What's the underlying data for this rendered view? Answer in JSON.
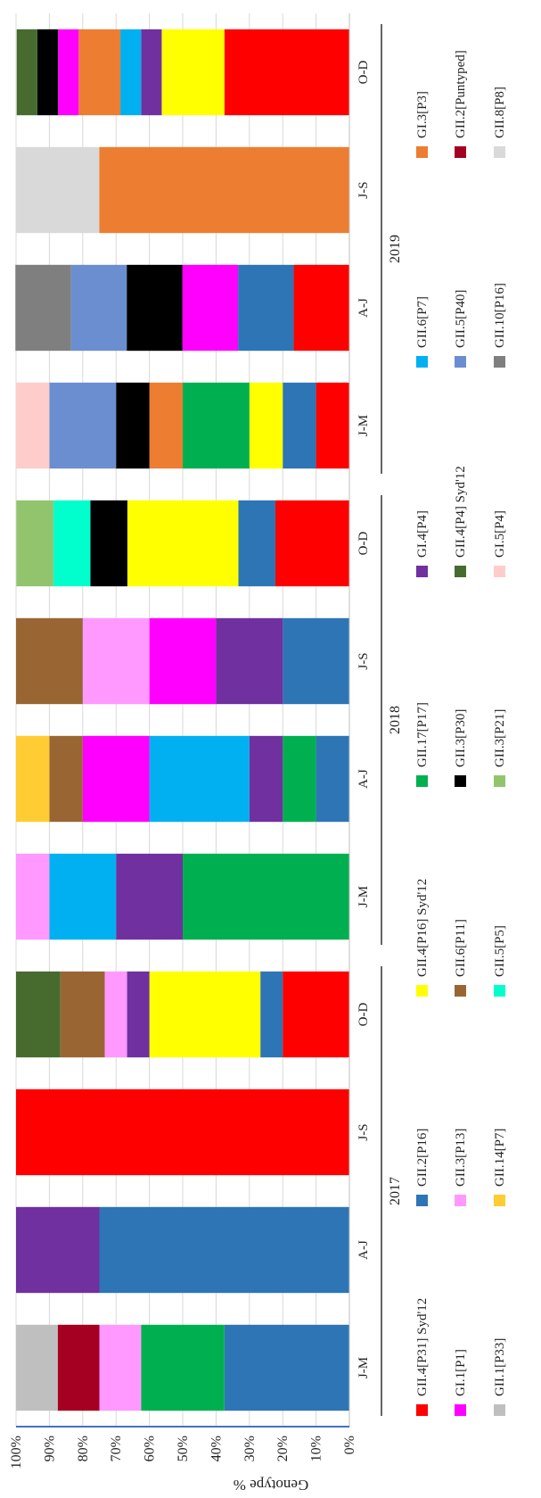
{
  "chart_data": {
    "type": "bar",
    "stacked": true,
    "normalized_percent": true,
    "ylabel": "Genotype %",
    "ylim": [
      0,
      100
    ],
    "yticks": [
      "0%",
      "10%",
      "20%",
      "30%",
      "40%",
      "50%",
      "60%",
      "70%",
      "80%",
      "90%",
      "100%"
    ],
    "grid": true,
    "legend_position": "bottom",
    "groups": [
      {
        "label": "2017",
        "categories": [
          "J-M",
          "A-J",
          "J-S",
          "O-D"
        ]
      },
      {
        "label": "2018",
        "categories": [
          "J-M",
          "A-J",
          "J-S",
          "O-D"
        ]
      },
      {
        "label": "2019",
        "categories": [
          "J-M",
          "A-J",
          "J-S",
          "O-D"
        ]
      }
    ],
    "series": [
      {
        "name": "GII.4[P31] Syd'12",
        "color": "#FF0000",
        "values": [
          0,
          0,
          100,
          20,
          0,
          0,
          0,
          22.2,
          10,
          16.7,
          0,
          37.5
        ]
      },
      {
        "name": "GII.2[P16]",
        "color": "#2E75B6",
        "values": [
          37.5,
          75,
          0,
          6.7,
          0,
          10,
          20,
          11.1,
          10,
          16.7,
          0,
          0
        ]
      },
      {
        "name": "GII.4[P16] Syd'12",
        "color": "#FFFF00",
        "values": [
          0,
          0,
          0,
          33.3,
          0,
          0,
          0,
          33.3,
          10,
          0,
          0,
          18.8
        ]
      },
      {
        "name": "GII.17[P17]",
        "color": "#00B050",
        "values": [
          25,
          0,
          0,
          0,
          50,
          10,
          0,
          0,
          20,
          0,
          0,
          0
        ]
      },
      {
        "name": "GI.4[P4]",
        "color": "#7030A0",
        "values": [
          0,
          25,
          0,
          6.7,
          20,
          10,
          20,
          0,
          0,
          0,
          0,
          6.2
        ]
      },
      {
        "name": "GII.6[P7]",
        "color": "#00B0F0",
        "values": [
          0,
          0,
          0,
          0,
          20,
          30,
          0,
          0,
          0,
          0,
          0,
          6.2
        ]
      },
      {
        "name": "GI.3[P3]",
        "color": "#ED7D31",
        "values": [
          0,
          0,
          0,
          0,
          0,
          0,
          0,
          0,
          10,
          0,
          75,
          12.5
        ]
      },
      {
        "name": "GI.1[P1]",
        "color": "#FF00FF",
        "values": [
          0,
          0,
          0,
          0,
          0,
          20,
          20,
          0,
          0,
          16.7,
          0,
          6.2
        ]
      },
      {
        "name": "GII.6[P11]",
        "color": "#996633",
        "values": [
          0,
          0,
          0,
          13.3,
          0,
          10,
          20,
          0,
          0,
          0,
          0,
          0
        ]
      },
      {
        "name": "GII.3[P30]",
        "color": "#000000",
        "values": [
          0,
          0,
          0,
          0,
          0,
          0,
          0,
          11.1,
          10,
          16.7,
          0,
          6.2
        ]
      },
      {
        "name": "GII.5[P40]",
        "color": "#6B8ED0",
        "values": [
          0,
          0,
          0,
          0,
          0,
          0,
          0,
          0,
          20,
          16.7,
          0,
          0
        ]
      },
      {
        "name": "GII.2[Puntyped]",
        "color": "#A50021",
        "values": [
          12.5,
          0,
          0,
          0,
          0,
          0,
          0,
          0,
          0,
          0,
          0,
          0
        ]
      },
      {
        "name": "GII.3[P13]",
        "color": "#FF99FF",
        "values": [
          12.5,
          0,
          0,
          6.7,
          10,
          0,
          20,
          0,
          0,
          0,
          0,
          0
        ]
      },
      {
        "name": "GII.5[P5]",
        "color": "#00FFCC",
        "values": [
          0,
          0,
          0,
          0,
          0,
          0,
          0,
          11.1,
          0,
          0,
          0,
          0
        ]
      },
      {
        "name": "GII.4[P4] Syd'12",
        "color": "#476B2F",
        "values": [
          0,
          0,
          0,
          13.3,
          0,
          0,
          0,
          0,
          0,
          0,
          0,
          6.2
        ]
      },
      {
        "name": "GII.10[P16]",
        "color": "#7F7F7F",
        "values": [
          0,
          0,
          0,
          0,
          0,
          0,
          0,
          0,
          0,
          16.7,
          0,
          0
        ]
      },
      {
        "name": "GII.1[P33]",
        "color": "#BFBFBF",
        "values": [
          12.5,
          0,
          0,
          0,
          0,
          0,
          0,
          0,
          0,
          0,
          0,
          0
        ]
      },
      {
        "name": "GII.14[P7]",
        "color": "#FFCC33",
        "values": [
          0,
          0,
          0,
          0,
          0,
          10,
          0,
          0,
          0,
          0,
          0,
          0
        ]
      },
      {
        "name": "GII.3[P21]",
        "color": "#92C46D",
        "values": [
          0,
          0,
          0,
          0,
          0,
          0,
          0,
          11.1,
          0,
          0,
          0,
          0
        ]
      },
      {
        "name": "GI.5[P4]",
        "color": "#FFCCCC",
        "values": [
          0,
          0,
          0,
          0,
          0,
          0,
          0,
          0,
          10,
          0,
          0,
          0
        ]
      },
      {
        "name": "GII.8[P8]",
        "color": "#D9D9D9",
        "values": [
          0,
          0,
          0,
          0,
          0,
          0,
          0,
          0,
          0,
          0,
          25,
          0
        ]
      }
    ],
    "bar_stack_order": [
      [
        "GII.2[P16]",
        "GII.17[P17]",
        "GII.3[P13]",
        "GII.2[Puntyped]",
        "GII.1[P33]"
      ],
      [
        "GII.2[P16]",
        "GI.4[P4]"
      ],
      [
        "GII.4[P31] Syd'12"
      ],
      [
        "GII.4[P31] Syd'12",
        "GII.2[P16]",
        "GII.4[P16] Syd'12",
        "GI.4[P4]",
        "GII.3[P13]",
        "GII.6[P11]",
        "GII.4[P4] Syd'12"
      ],
      [
        "GII.17[P17]",
        "GI.4[P4]",
        "GII.6[P7]",
        "GII.3[P13]"
      ],
      [
        "GII.2[P16]",
        "GII.17[P17]",
        "GI.4[P4]",
        "GII.6[P7]",
        "GI.1[P1]",
        "GII.6[P11]",
        "GII.14[P7]"
      ],
      [
        "GII.2[P16]",
        "GI.4[P4]",
        "GI.1[P1]",
        "GII.3[P13]",
        "GII.6[P11]"
      ],
      [
        "GII.4[P31] Syd'12",
        "GII.2[P16]",
        "GII.4[P16] Syd'12",
        "GII.3[P30]",
        "GII.5[P5]",
        "GII.3[P21]"
      ],
      [
        "GII.4[P31] Syd'12",
        "GII.2[P16]",
        "GII.4[P16] Syd'12",
        "GII.17[P17]",
        "GI.3[P3]",
        "GII.3[P30]",
        "GII.5[P40]",
        "GI.5[P4]"
      ],
      [
        "GII.4[P31] Syd'12",
        "GII.2[P16]",
        "GI.1[P1]",
        "GII.3[P30]",
        "GII.5[P40]",
        "GII.10[P16]"
      ],
      [
        "GI.3[P3]",
        "GII.8[P8]"
      ],
      [
        "GII.4[P31] Syd'12",
        "GII.4[P16] Syd'12",
        "GI.4[P4]",
        "GII.6[P7]",
        "GI.3[P3]",
        "GI.1[P1]",
        "GII.3[P30]",
        "GII.4[P4] Syd'12"
      ]
    ],
    "legend_order": [
      "GII.4[P31] Syd'12",
      "GII.2[P16]",
      "GII.4[P16] Syd'12",
      "GII.17[P17]",
      "GI.4[P4]",
      "GII.6[P7]",
      "GI.3[P3]",
      "GI.1[P1]",
      "GII.3[P13]",
      "GII.6[P11]",
      "GII.3[P30]",
      "GII.4[P4] Syd'12",
      "GII.5[P40]",
      "GII.2[Puntyped]",
      "GII.1[P33]",
      "GII.14[P7]",
      "GII.5[P5]",
      "GII.3[P21]",
      "GI.5[P4]",
      "GII.10[P16]",
      "GII.8[P8]"
    ]
  }
}
